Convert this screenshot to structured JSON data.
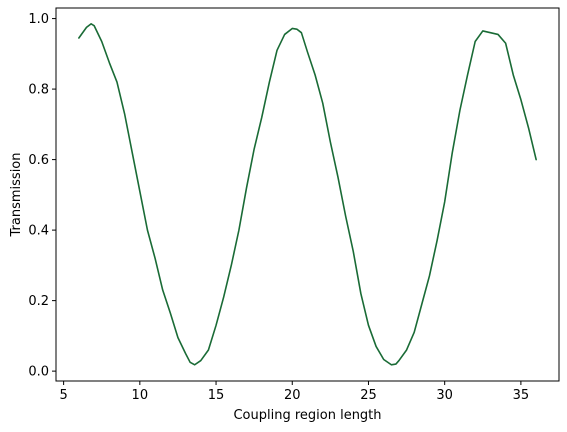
{
  "chart_data": {
    "type": "line",
    "title": "",
    "xlabel": "Coupling region length",
    "ylabel": "Transmission",
    "xlim": [
      4.5,
      37.5
    ],
    "ylim": [
      -0.028,
      1.03
    ],
    "xticks": [
      5,
      10,
      15,
      20,
      25,
      30,
      35
    ],
    "xtick_labels": [
      "5",
      "10",
      "15",
      "20",
      "25",
      "30",
      "35"
    ],
    "yticks": [
      0.0,
      0.2,
      0.4,
      0.6,
      0.8,
      1.0
    ],
    "ytick_labels": [
      "0.0",
      "0.2",
      "0.4",
      "0.6",
      "0.8",
      "1.0"
    ],
    "grid": false,
    "legend": "none",
    "series": [
      {
        "color": "#1a6b36",
        "x": [
          6.0,
          6.5,
          6.8,
          7.0,
          7.5,
          8.0,
          8.5,
          9.0,
          9.5,
          10.0,
          10.5,
          11.0,
          11.5,
          12.0,
          12.5,
          13.0,
          13.3,
          13.6,
          14.0,
          14.5,
          15.0,
          15.5,
          16.0,
          16.5,
          17.0,
          17.5,
          18.0,
          18.5,
          19.0,
          19.5,
          20.0,
          20.3,
          20.6,
          21.0,
          21.5,
          22.0,
          22.5,
          23.0,
          23.5,
          24.0,
          24.5,
          25.0,
          25.5,
          26.0,
          26.5,
          26.8,
          27.0,
          27.5,
          28.0,
          28.5,
          29.0,
          29.5,
          30.0,
          30.5,
          31.0,
          31.5,
          32.0,
          32.5,
          33.0,
          33.5,
          34.0,
          34.5,
          35.0,
          35.5,
          36.0
        ],
        "y": [
          0.945,
          0.975,
          0.985,
          0.98,
          0.935,
          0.875,
          0.82,
          0.73,
          0.62,
          0.51,
          0.4,
          0.32,
          0.23,
          0.165,
          0.095,
          0.05,
          0.025,
          0.018,
          0.03,
          0.06,
          0.13,
          0.21,
          0.3,
          0.4,
          0.52,
          0.63,
          0.72,
          0.82,
          0.91,
          0.955,
          0.972,
          0.97,
          0.96,
          0.905,
          0.84,
          0.76,
          0.65,
          0.55,
          0.44,
          0.34,
          0.22,
          0.13,
          0.07,
          0.033,
          0.018,
          0.02,
          0.03,
          0.06,
          0.11,
          0.19,
          0.27,
          0.37,
          0.48,
          0.62,
          0.74,
          0.84,
          0.935,
          0.965,
          0.96,
          0.955,
          0.93,
          0.84,
          0.77,
          0.69,
          0.6
        ]
      }
    ]
  }
}
